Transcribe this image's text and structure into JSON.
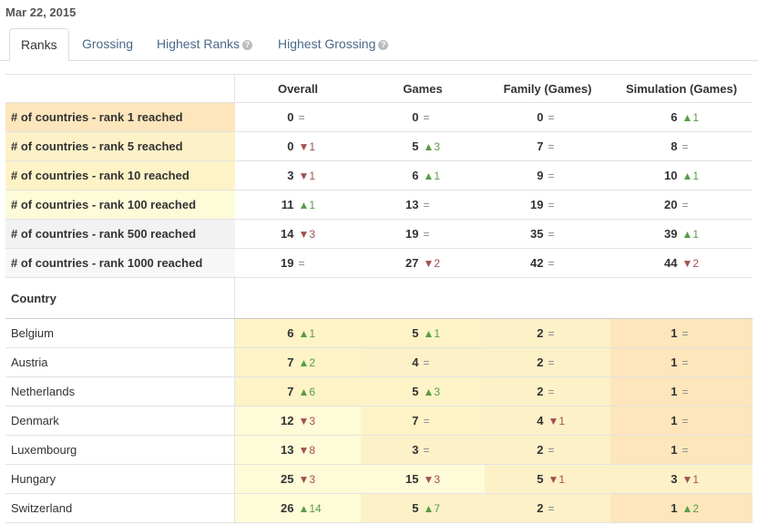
{
  "date": "Mar 22, 2015",
  "tabs": [
    {
      "label": "Ranks",
      "active": true
    },
    {
      "label": "Grossing",
      "active": false
    },
    {
      "label": "Highest Ranks",
      "active": false,
      "help": true
    },
    {
      "label": "Highest Grossing",
      "active": false,
      "help": true
    }
  ],
  "columns": [
    "Overall",
    "Games",
    "Family (Games)",
    "Simulation (Games)"
  ],
  "metrics_rows": [
    {
      "label": "# of countries - rank 1 reached",
      "bg": "#fde6bc",
      "cells": [
        {
          "value": "0",
          "change": "=",
          "dir": "same"
        },
        {
          "value": "0",
          "change": "=",
          "dir": "same"
        },
        {
          "value": "0",
          "change": "=",
          "dir": "same"
        },
        {
          "value": "6",
          "change": "▲1",
          "dir": "up"
        }
      ]
    },
    {
      "label": "# of countries - rank 5 reached",
      "bg": "#fdf1c8",
      "cells": [
        {
          "value": "0",
          "change": "▼1",
          "dir": "down"
        },
        {
          "value": "5",
          "change": "▲3",
          "dir": "up"
        },
        {
          "value": "7",
          "change": "=",
          "dir": "same"
        },
        {
          "value": "8",
          "change": "=",
          "dir": "same"
        }
      ]
    },
    {
      "label": "# of countries - rank 10 reached",
      "bg": "#fdf3c6",
      "cells": [
        {
          "value": "3",
          "change": "▼1",
          "dir": "down"
        },
        {
          "value": "6",
          "change": "▲1",
          "dir": "up"
        },
        {
          "value": "9",
          "change": "=",
          "dir": "same"
        },
        {
          "value": "10",
          "change": "▲1",
          "dir": "up"
        }
      ]
    },
    {
      "label": "# of countries - rank 100 reached",
      "bg": "#fefbd8",
      "cells": [
        {
          "value": "11",
          "change": "▲1",
          "dir": "up"
        },
        {
          "value": "13",
          "change": "=",
          "dir": "same"
        },
        {
          "value": "19",
          "change": "=",
          "dir": "same"
        },
        {
          "value": "20",
          "change": "=",
          "dir": "same"
        }
      ]
    },
    {
      "label": "# of countries - rank 500 reached",
      "bg": "#f2f2f2",
      "cells": [
        {
          "value": "14",
          "change": "▼3",
          "dir": "down"
        },
        {
          "value": "19",
          "change": "=",
          "dir": "same"
        },
        {
          "value": "35",
          "change": "=",
          "dir": "same"
        },
        {
          "value": "39",
          "change": "▲1",
          "dir": "up"
        }
      ]
    },
    {
      "label": "# of countries - rank 1000 reached",
      "bg": "#f7f7f7",
      "cells": [
        {
          "value": "19",
          "change": "=",
          "dir": "same"
        },
        {
          "value": "27",
          "change": "▼2",
          "dir": "down"
        },
        {
          "value": "42",
          "change": "=",
          "dir": "same"
        },
        {
          "value": "44",
          "change": "▼2",
          "dir": "down"
        }
      ]
    }
  ],
  "country_header": "Country",
  "country_rows": [
    {
      "name": "Belgium",
      "cells": [
        {
          "value": "6",
          "change": "▲1",
          "dir": "up",
          "bg": "#fdf3c6"
        },
        {
          "value": "5",
          "change": "▲1",
          "dir": "up",
          "bg": "#fdf3c6"
        },
        {
          "value": "2",
          "change": "=",
          "dir": "same",
          "bg": "#fdf1c8"
        },
        {
          "value": "1",
          "change": "=",
          "dir": "same",
          "bg": "#fde6bc"
        }
      ]
    },
    {
      "name": "Austria",
      "cells": [
        {
          "value": "7",
          "change": "▲2",
          "dir": "up",
          "bg": "#fdf3c6"
        },
        {
          "value": "4",
          "change": "=",
          "dir": "same",
          "bg": "#fdf1c8"
        },
        {
          "value": "2",
          "change": "=",
          "dir": "same",
          "bg": "#fdf1c8"
        },
        {
          "value": "1",
          "change": "=",
          "dir": "same",
          "bg": "#fde6bc"
        }
      ]
    },
    {
      "name": "Netherlands",
      "cells": [
        {
          "value": "7",
          "change": "▲6",
          "dir": "up",
          "bg": "#fdf3c6"
        },
        {
          "value": "5",
          "change": "▲3",
          "dir": "up",
          "bg": "#fdf3c6"
        },
        {
          "value": "2",
          "change": "=",
          "dir": "same",
          "bg": "#fdf1c8"
        },
        {
          "value": "1",
          "change": "=",
          "dir": "same",
          "bg": "#fde6bc"
        }
      ]
    },
    {
      "name": "Denmark",
      "cells": [
        {
          "value": "12",
          "change": "▼3",
          "dir": "down",
          "bg": "#fefbd8"
        },
        {
          "value": "7",
          "change": "=",
          "dir": "same",
          "bg": "#fdf3c6"
        },
        {
          "value": "4",
          "change": "▼1",
          "dir": "down",
          "bg": "#fdf1c8"
        },
        {
          "value": "1",
          "change": "=",
          "dir": "same",
          "bg": "#fde6bc"
        }
      ]
    },
    {
      "name": "Luxembourg",
      "cells": [
        {
          "value": "13",
          "change": "▼8",
          "dir": "down",
          "bg": "#fefbd8"
        },
        {
          "value": "3",
          "change": "=",
          "dir": "same",
          "bg": "#fdf1c8"
        },
        {
          "value": "2",
          "change": "=",
          "dir": "same",
          "bg": "#fdf1c8"
        },
        {
          "value": "1",
          "change": "=",
          "dir": "same",
          "bg": "#fde6bc"
        }
      ]
    },
    {
      "name": "Hungary",
      "cells": [
        {
          "value": "25",
          "change": "▼3",
          "dir": "down",
          "bg": "#fefbd8"
        },
        {
          "value": "15",
          "change": "▼3",
          "dir": "down",
          "bg": "#fefbd8"
        },
        {
          "value": "5",
          "change": "▼1",
          "dir": "down",
          "bg": "#fdf1c8"
        },
        {
          "value": "3",
          "change": "▼1",
          "dir": "down",
          "bg": "#fdf1c8"
        }
      ]
    },
    {
      "name": "Switzerland",
      "cells": [
        {
          "value": "26",
          "change": "▲14",
          "dir": "up",
          "bg": "#fefbd8"
        },
        {
          "value": "5",
          "change": "▲7",
          "dir": "up",
          "bg": "#fdf1c8"
        },
        {
          "value": "2",
          "change": "=",
          "dir": "same",
          "bg": "#fdf1c8"
        },
        {
          "value": "1",
          "change": "▲2",
          "dir": "up",
          "bg": "#fde6bc"
        }
      ]
    }
  ]
}
